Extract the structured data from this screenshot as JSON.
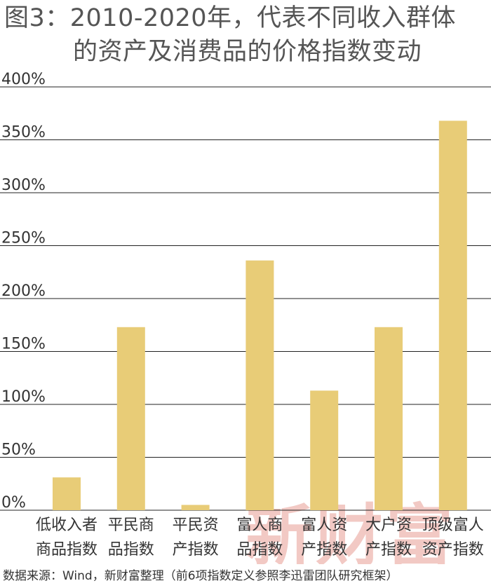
{
  "title_line1": "图3：2010-2020年，代表不同收入群体",
  "title_line2": "的资产及消费品的价格指数变动",
  "source": "数据来源：Wind，新财富整理（前6项指数定义参照李迅雷团队研究框架）",
  "watermark": "新财富",
  "colors": {
    "bar": "#e8cc77",
    "grid": "#222222",
    "text": "#333333",
    "watermark": "#f2c9c4"
  },
  "chart_data": {
    "type": "bar",
    "title": "图3：2010-2020年，代表不同收入群体的资产及消费品的价格指数变动",
    "categories": [
      [
        "低收入者",
        "商品指数"
      ],
      [
        "平民商",
        "品指数"
      ],
      [
        "平民资",
        "产指数"
      ],
      [
        "富人商",
        "品指数"
      ],
      [
        "富人资",
        "产指数"
      ],
      [
        "大户资",
        "产指数"
      ],
      [
        "顶级富人",
        "资产指数"
      ]
    ],
    "values": [
      31,
      173,
      5,
      236,
      113,
      173,
      368
    ],
    "ylim": [
      0,
      400
    ],
    "yticks": [
      0,
      50,
      100,
      150,
      200,
      250,
      300,
      350,
      400
    ],
    "ytick_labels": [
      "0%",
      "50%",
      "100%",
      "150%",
      "200%",
      "250%",
      "300%",
      "350%",
      "400%"
    ],
    "grid": true,
    "legend": "none"
  }
}
